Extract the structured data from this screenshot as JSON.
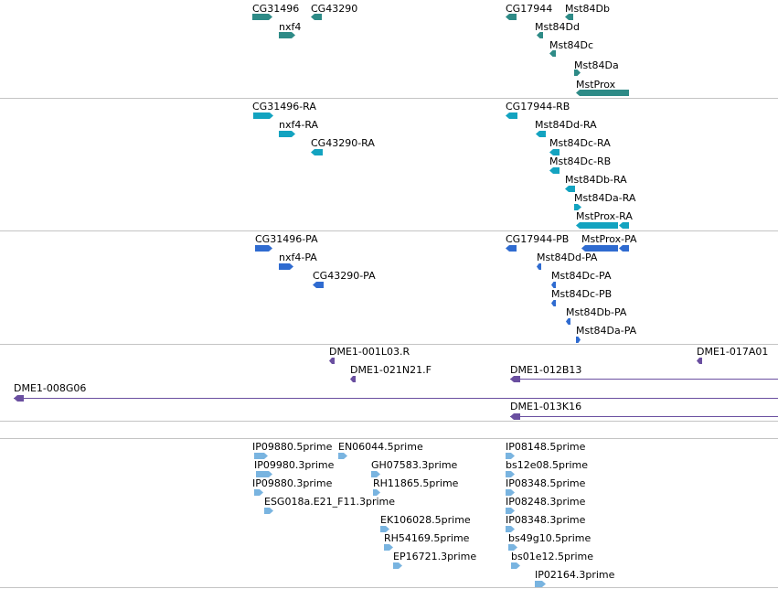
{
  "colors": {
    "genes": "#2e8b87",
    "transcripts": "#13a3c0",
    "proteins": "#2f6bd0",
    "clones": "#6a4fa0",
    "ests": "#79b4e0",
    "divider": "#c4c4c4"
  },
  "tracks": {
    "genes": {
      "features": [
        {
          "label": "CG31496",
          "strand": "+"
        },
        {
          "label": "CG43290",
          "strand": "-"
        },
        {
          "label": "nxf4",
          "strand": "+"
        },
        {
          "label": "CG17944",
          "strand": "-"
        },
        {
          "label": "Mst84Db",
          "strand": "-"
        },
        {
          "label": "Mst84Dd",
          "strand": "-"
        },
        {
          "label": "Mst84Dc",
          "strand": "-"
        },
        {
          "label": "Mst84Da",
          "strand": "+"
        },
        {
          "label": "MstProx",
          "strand": "-"
        }
      ]
    },
    "transcripts": {
      "features": [
        {
          "label": "CG31496-RA",
          "strand": "+"
        },
        {
          "label": "nxf4-RA",
          "strand": "+"
        },
        {
          "label": "CG43290-RA",
          "strand": "-"
        },
        {
          "label": "CG17944-RB",
          "strand": "-"
        },
        {
          "label": "Mst84Dd-RA",
          "strand": "-"
        },
        {
          "label": "Mst84Dc-RA",
          "strand": "-"
        },
        {
          "label": "Mst84Dc-RB",
          "strand": "-"
        },
        {
          "label": "Mst84Db-RA",
          "strand": "-"
        },
        {
          "label": "Mst84Da-RA",
          "strand": "+"
        },
        {
          "label": "MstProx-RA",
          "strand": "-"
        }
      ]
    },
    "proteins": {
      "features": [
        {
          "label": "CG31496-PA",
          "strand": "+"
        },
        {
          "label": "nxf4-PA",
          "strand": "+"
        },
        {
          "label": "CG43290-PA",
          "strand": "-"
        },
        {
          "label": "CG17944-PB",
          "strand": "-"
        },
        {
          "label": "MstProx-PA",
          "strand": "-"
        },
        {
          "label": "Mst84Dd-PA",
          "strand": "-"
        },
        {
          "label": "Mst84Dc-PA",
          "strand": "-"
        },
        {
          "label": "Mst84Dc-PB",
          "strand": "-"
        },
        {
          "label": "Mst84Db-PA",
          "strand": "-"
        },
        {
          "label": "Mst84Da-PA",
          "strand": "+"
        }
      ]
    },
    "clones": {
      "features": [
        {
          "label": "DME1-001L03.R",
          "strand": "-"
        },
        {
          "label": "DME1-017A01",
          "strand": "-"
        },
        {
          "label": "DME1-021N21.F",
          "strand": "-"
        },
        {
          "label": "DME1-012B13",
          "strand": "-"
        },
        {
          "label": "DME1-008G06",
          "strand": "-"
        },
        {
          "label": "DME1-013K16",
          "strand": "-"
        }
      ]
    },
    "ests": {
      "features": [
        {
          "label": "IP09880.5prime",
          "strand": "+"
        },
        {
          "label": "EN06044.5prime",
          "strand": "+"
        },
        {
          "label": "IP08148.5prime",
          "strand": "+"
        },
        {
          "label": "IP09980.3prime",
          "strand": "+"
        },
        {
          "label": "GH07583.3prime",
          "strand": "+"
        },
        {
          "label": "bs12e08.5prime",
          "strand": "+"
        },
        {
          "label": "IP09880.3prime",
          "strand": "+"
        },
        {
          "label": "RH11865.5prime",
          "strand": "+"
        },
        {
          "label": "IP08348.5prime",
          "strand": "+"
        },
        {
          "label": "ESG018a.E21_F11.3prime",
          "strand": "+"
        },
        {
          "label": "IP08248.3prime",
          "strand": "+"
        },
        {
          "label": "EK106028.5prime",
          "strand": "+"
        },
        {
          "label": "IP08348.3prime",
          "strand": "+"
        },
        {
          "label": "RH54169.5prime",
          "strand": "+"
        },
        {
          "label": "bs49g10.5prime",
          "strand": "+"
        },
        {
          "label": "EP16721.3prime",
          "strand": "+"
        },
        {
          "label": "bs01e12.5prime",
          "strand": "+"
        },
        {
          "label": "IP02164.3prime",
          "strand": "+"
        }
      ]
    }
  }
}
